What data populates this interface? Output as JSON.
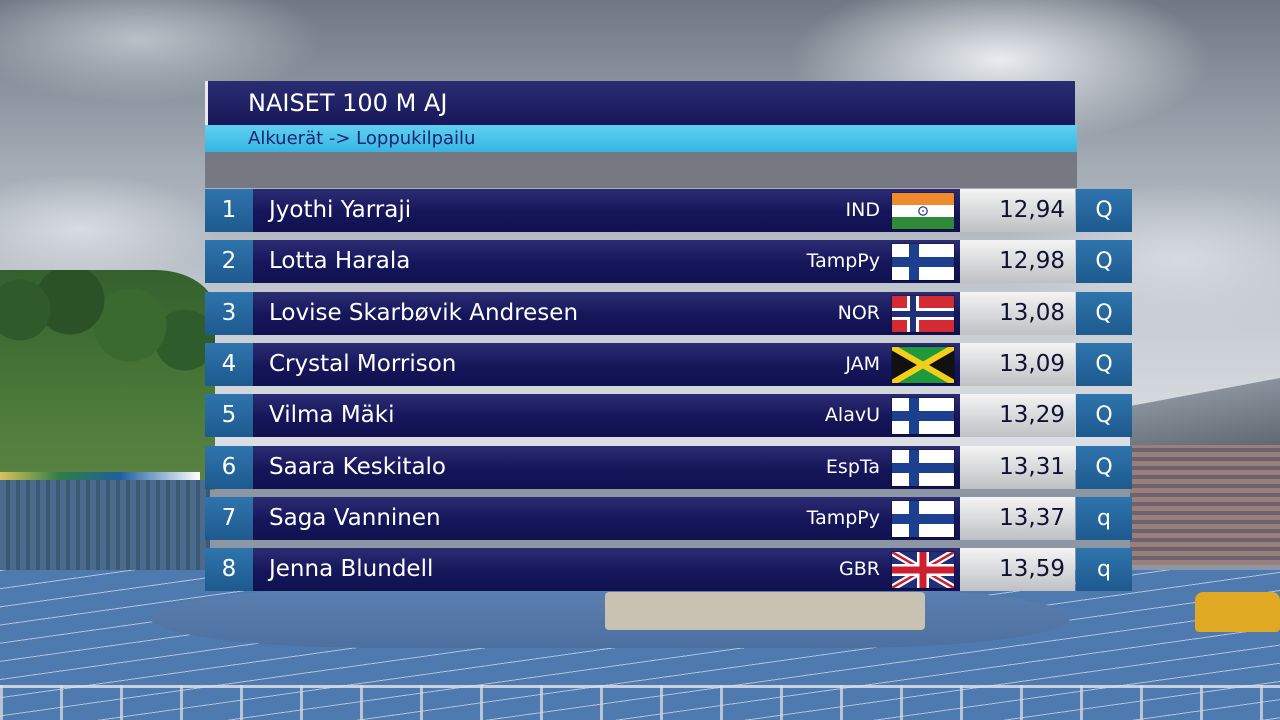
{
  "header": {
    "title": "NAISET 100 M AJ",
    "subtitle": "Alkuerät -> Loppukilpailu"
  },
  "results": [
    {
      "pos": "1",
      "name": "Jyothi Yarraji",
      "club": "IND",
      "flag": "india-flag-icon",
      "time": "12,94",
      "qual": "Q"
    },
    {
      "pos": "2",
      "name": "Lotta Harala",
      "club": "TampPy",
      "flag": "finland-flag-icon",
      "time": "12,98",
      "qual": "Q"
    },
    {
      "pos": "3",
      "name": "Lovise Skarbøvik Andresen",
      "club": "NOR",
      "flag": "norway-flag-icon",
      "time": "13,08",
      "qual": "Q"
    },
    {
      "pos": "4",
      "name": "Crystal Morrison",
      "club": "JAM",
      "flag": "jamaica-flag-icon",
      "time": "13,09",
      "qual": "Q"
    },
    {
      "pos": "5",
      "name": "Vilma Mäki",
      "club": "AlavU",
      "flag": "finland-flag-icon",
      "time": "13,29",
      "qual": "Q"
    },
    {
      "pos": "6",
      "name": "Saara Keskitalo",
      "club": "EspTa",
      "flag": "finland-flag-icon",
      "time": "13,31",
      "qual": "Q"
    },
    {
      "pos": "7",
      "name": "Saga Vanninen",
      "club": "TampPy",
      "flag": "finland-flag-icon",
      "time": "13,37",
      "qual": "q"
    },
    {
      "pos": "8",
      "name": "Jenna Blundell",
      "club": "GBR",
      "flag": "uk-flag-icon",
      "time": "13,59",
      "qual": "q"
    }
  ],
  "colors": {
    "board_navy": "#16175a",
    "accent_cyan": "#36b6e3",
    "position_blue": "#1d5a8e",
    "time_silver": "#d7d8da"
  }
}
